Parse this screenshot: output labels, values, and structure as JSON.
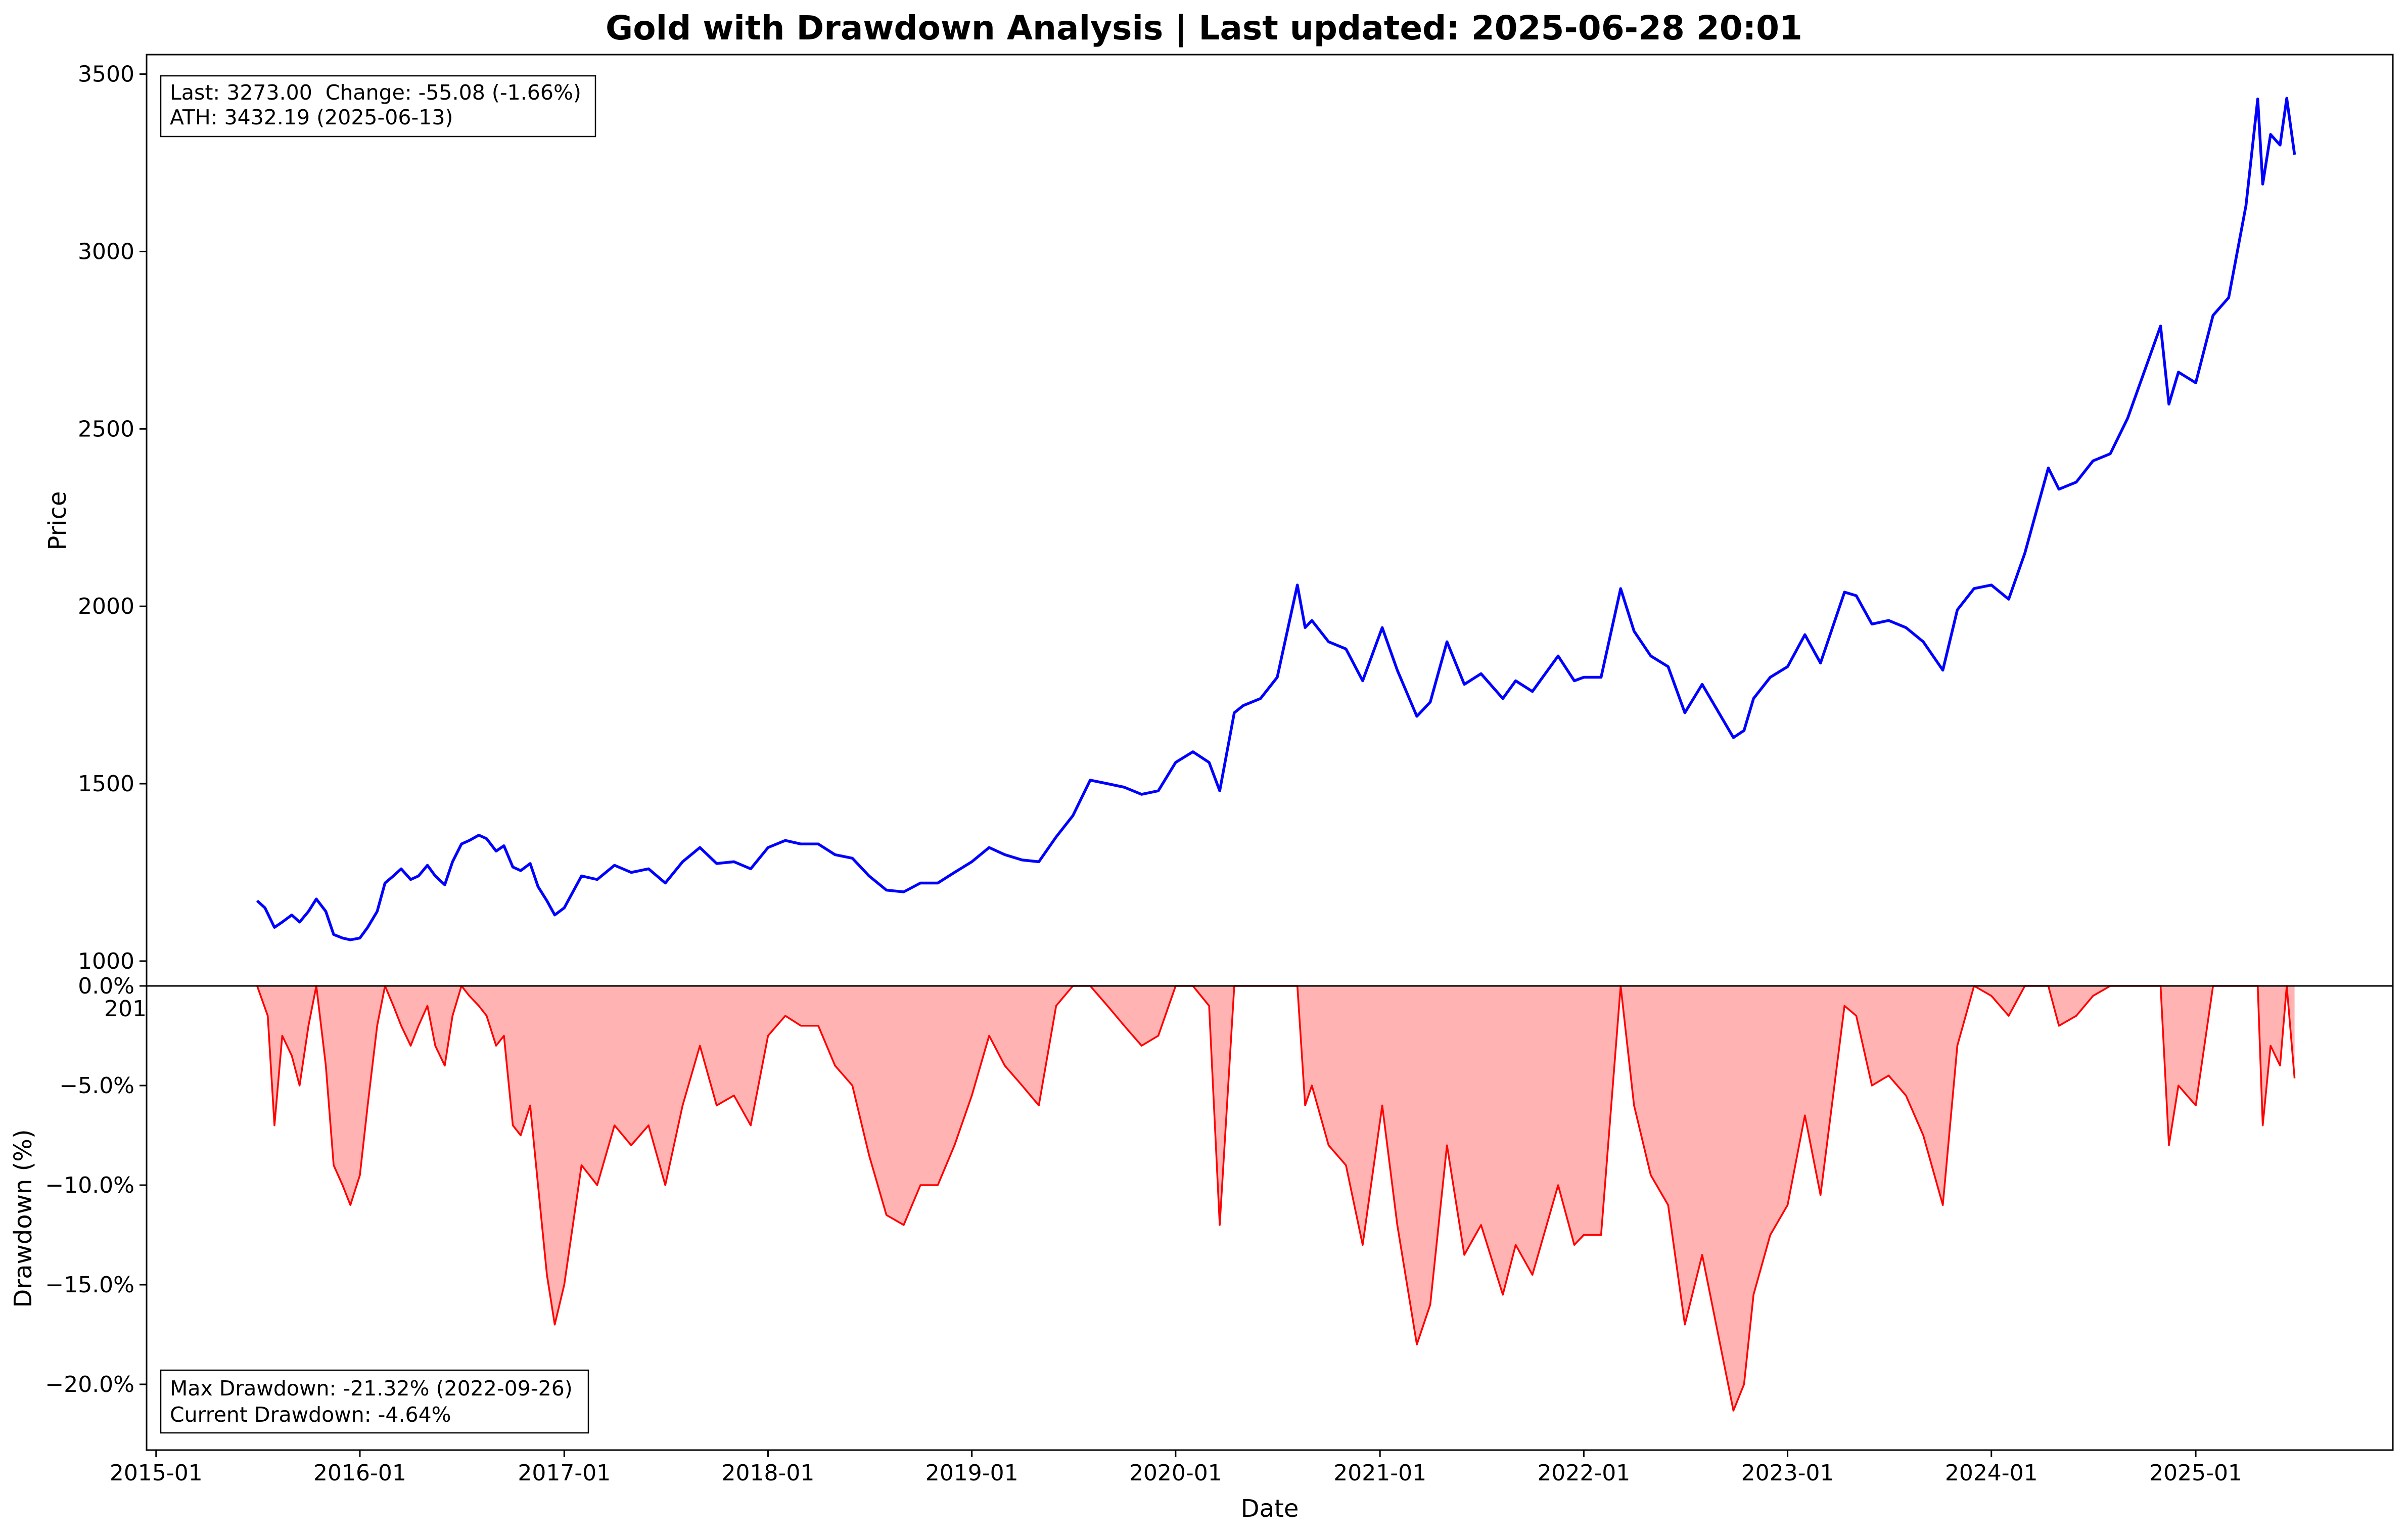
{
  "figure": {
    "title": "Gold with Drawdown Analysis | Last updated: 2025-06-28 20:01"
  },
  "price_panel": {
    "ylabel": "Price",
    "info_line1": "Last: 3273.00  Change: -55.08 (-1.66%)",
    "info_line2": "ATH: 3432.19 (2025-06-13)",
    "line_color": "#0000ff"
  },
  "drawdown_panel": {
    "ylabel": "Drawdown (%)",
    "xlabel": "Date",
    "info_line1": "Max Drawdown: -21.32% (2022-09-26)",
    "info_line2": "Current Drawdown: -4.64%",
    "line_color": "#ff0000",
    "fill_color": "#ffb3b3",
    "clipped_tick_fragment": "201"
  },
  "chart_data": [
    {
      "type": "line",
      "title": "Gold with Drawdown Analysis | Last updated: 2025-06-28 20:01",
      "xlabel": "",
      "ylabel": "Price",
      "xlim": [
        "2014-12-15",
        "2025-12-20"
      ],
      "ylim": [
        930,
        3555
      ],
      "yticks": [
        1000,
        1500,
        2000,
        2500,
        3000,
        3500
      ],
      "xticks": [
        "2015-01",
        "2016-01",
        "2017-01",
        "2018-01",
        "2019-01",
        "2020-01",
        "2021-01",
        "2022-01",
        "2023-01",
        "2024-01",
        "2025-01"
      ],
      "grid": false,
      "series": [
        {
          "name": "",
          "color": "#0000ff",
          "x": [
            "2015-07-01",
            "2015-07-15",
            "2015-08-01",
            "2015-08-15",
            "2015-09-01",
            "2015-09-15",
            "2015-10-01",
            "2015-10-15",
            "2015-11-01",
            "2015-11-15",
            "2015-12-01",
            "2015-12-15",
            "2016-01-01",
            "2016-01-15",
            "2016-02-01",
            "2016-02-15",
            "2016-03-01",
            "2016-03-15",
            "2016-04-01",
            "2016-04-15",
            "2016-05-01",
            "2016-05-15",
            "2016-06-01",
            "2016-06-15",
            "2016-07-01",
            "2016-07-15",
            "2016-08-01",
            "2016-08-15",
            "2016-09-01",
            "2016-09-15",
            "2016-10-01",
            "2016-10-15",
            "2016-11-01",
            "2016-11-15",
            "2016-12-01",
            "2016-12-15",
            "2017-01-01",
            "2017-02-01",
            "2017-03-01",
            "2017-04-01",
            "2017-05-01",
            "2017-06-01",
            "2017-07-01",
            "2017-08-01",
            "2017-09-01",
            "2017-10-01",
            "2017-11-01",
            "2017-12-01",
            "2018-01-01",
            "2018-02-01",
            "2018-03-01",
            "2018-04-01",
            "2018-05-01",
            "2018-06-01",
            "2018-07-01",
            "2018-08-01",
            "2018-09-01",
            "2018-10-01",
            "2018-11-01",
            "2018-12-01",
            "2019-01-01",
            "2019-02-01",
            "2019-03-01",
            "2019-04-01",
            "2019-05-01",
            "2019-06-01",
            "2019-07-01",
            "2019-08-01",
            "2019-09-01",
            "2019-10-01",
            "2019-11-01",
            "2019-12-01",
            "2020-01-01",
            "2020-02-01",
            "2020-03-01",
            "2020-03-20",
            "2020-04-15",
            "2020-05-01",
            "2020-06-01",
            "2020-07-01",
            "2020-08-06",
            "2020-08-20",
            "2020-09-01",
            "2020-10-01",
            "2020-11-01",
            "2020-12-01",
            "2021-01-05",
            "2021-02-01",
            "2021-03-08",
            "2021-04-01",
            "2021-05-01",
            "2021-06-01",
            "2021-07-01",
            "2021-08-09",
            "2021-09-01",
            "2021-10-01",
            "2021-11-16",
            "2021-12-15",
            "2022-01-01",
            "2022-02-01",
            "2022-03-08",
            "2022-04-01",
            "2022-05-01",
            "2022-06-01",
            "2022-07-01",
            "2022-08-01",
            "2022-09-26",
            "2022-10-15",
            "2022-11-01",
            "2022-12-01",
            "2023-01-01",
            "2023-02-01",
            "2023-03-01",
            "2023-04-13",
            "2023-05-04",
            "2023-06-01",
            "2023-07-01",
            "2023-08-01",
            "2023-09-01",
            "2023-10-06",
            "2023-11-01",
            "2023-12-01",
            "2024-01-01",
            "2024-02-01",
            "2024-03-01",
            "2024-04-12",
            "2024-05-01",
            "2024-06-01",
            "2024-07-01",
            "2024-08-01",
            "2024-09-01",
            "2024-10-30",
            "2024-11-14",
            "2024-12-01",
            "2025-01-01",
            "2025-02-01",
            "2025-03-01",
            "2025-04-01",
            "2025-04-22",
            "2025-05-01",
            "2025-05-15",
            "2025-06-01",
            "2025-06-13",
            "2025-06-27"
          ],
          "y": [
            1170,
            1150,
            1095,
            1110,
            1130,
            1110,
            1140,
            1175,
            1140,
            1075,
            1065,
            1060,
            1065,
            1095,
            1140,
            1220,
            1240,
            1260,
            1230,
            1240,
            1270,
            1240,
            1215,
            1280,
            1330,
            1340,
            1355,
            1345,
            1310,
            1325,
            1265,
            1255,
            1275,
            1210,
            1170,
            1130,
            1150,
            1240,
            1230,
            1270,
            1250,
            1260,
            1220,
            1280,
            1320,
            1275,
            1280,
            1260,
            1320,
            1340,
            1330,
            1330,
            1300,
            1290,
            1240,
            1200,
            1195,
            1220,
            1220,
            1250,
            1280,
            1320,
            1300,
            1285,
            1280,
            1350,
            1410,
            1510,
            1500,
            1490,
            1470,
            1480,
            1560,
            1590,
            1560,
            1480,
            1700,
            1720,
            1740,
            1800,
            2060,
            1940,
            1960,
            1900,
            1880,
            1790,
            1940,
            1820,
            1690,
            1730,
            1900,
            1780,
            1810,
            1740,
            1790,
            1760,
            1860,
            1790,
            1800,
            1800,
            2050,
            1930,
            1860,
            1830,
            1700,
            1780,
            1630,
            1650,
            1740,
            1800,
            1830,
            1920,
            1840,
            2040,
            2030,
            1950,
            1960,
            1940,
            1900,
            1820,
            1990,
            2050,
            2060,
            2020,
            2150,
            2390,
            2330,
            2350,
            2410,
            2430,
            2530,
            2790,
            2570,
            2660,
            2630,
            2820,
            2870,
            3130,
            3430,
            3190,
            3330,
            3300,
            3432,
            3273
          ]
        }
      ]
    },
    {
      "type": "area",
      "xlabel": "Date",
      "ylabel": "Drawdown (%)",
      "xlim": [
        "2014-12-15",
        "2025-12-20"
      ],
      "ylim": [
        -23.3,
        0
      ],
      "yticks": [
        0,
        -5,
        -10,
        -15,
        -20
      ],
      "ytick_labels": [
        "0.0%",
        "−5.0%",
        "−10.0%",
        "−15.0%",
        "−20.0%"
      ],
      "xticks": [
        "2015-01",
        "2016-01",
        "2017-01",
        "2018-01",
        "2019-01",
        "2020-01",
        "2021-01",
        "2022-01",
        "2023-01",
        "2024-01",
        "2025-01"
      ],
      "grid": false,
      "series": [
        {
          "name": "",
          "color": "#ff0000",
          "fill": "#ffb3b3",
          "x": [
            "2015-07-01",
            "2015-07-20",
            "2015-08-01",
            "2015-08-15",
            "2015-09-01",
            "2015-09-15",
            "2015-10-01",
            "2015-10-15",
            "2015-11-01",
            "2015-11-15",
            "2015-12-01",
            "2015-12-15",
            "2016-01-01",
            "2016-01-15",
            "2016-02-01",
            "2016-02-15",
            "2016-03-01",
            "2016-03-15",
            "2016-04-01",
            "2016-04-15",
            "2016-05-01",
            "2016-05-15",
            "2016-06-01",
            "2016-06-15",
            "2016-07-01",
            "2016-07-15",
            "2016-08-01",
            "2016-08-15",
            "2016-09-01",
            "2016-09-15",
            "2016-10-01",
            "2016-10-15",
            "2016-11-01",
            "2016-11-15",
            "2016-12-01",
            "2016-12-15",
            "2017-01-01",
            "2017-02-01",
            "2017-03-01",
            "2017-04-01",
            "2017-05-01",
            "2017-06-01",
            "2017-07-01",
            "2017-08-01",
            "2017-09-01",
            "2017-10-01",
            "2017-11-01",
            "2017-12-01",
            "2018-01-01",
            "2018-02-01",
            "2018-03-01",
            "2018-04-01",
            "2018-05-01",
            "2018-06-01",
            "2018-07-01",
            "2018-08-01",
            "2018-09-01",
            "2018-10-01",
            "2018-11-01",
            "2018-12-01",
            "2019-01-01",
            "2019-02-01",
            "2019-03-01",
            "2019-04-01",
            "2019-05-01",
            "2019-06-01",
            "2019-07-01",
            "2019-08-01",
            "2019-09-01",
            "2019-10-01",
            "2019-11-01",
            "2019-12-01",
            "2020-01-01",
            "2020-02-01",
            "2020-03-01",
            "2020-03-20",
            "2020-04-15",
            "2020-05-01",
            "2020-06-01",
            "2020-07-01",
            "2020-08-06",
            "2020-08-20",
            "2020-09-01",
            "2020-10-01",
            "2020-11-01",
            "2020-12-01",
            "2021-01-05",
            "2021-02-01",
            "2021-03-08",
            "2021-04-01",
            "2021-05-01",
            "2021-06-01",
            "2021-07-01",
            "2021-08-09",
            "2021-09-01",
            "2021-10-01",
            "2021-11-16",
            "2021-12-15",
            "2022-01-01",
            "2022-02-01",
            "2022-03-08",
            "2022-04-01",
            "2022-05-01",
            "2022-06-01",
            "2022-07-01",
            "2022-08-01",
            "2022-09-26",
            "2022-10-15",
            "2022-11-01",
            "2022-12-01",
            "2023-01-01",
            "2023-02-01",
            "2023-03-01",
            "2023-04-13",
            "2023-05-04",
            "2023-06-01",
            "2023-07-01",
            "2023-08-01",
            "2023-09-01",
            "2023-10-06",
            "2023-11-01",
            "2023-12-01",
            "2024-01-01",
            "2024-02-01",
            "2024-03-01",
            "2024-04-12",
            "2024-05-01",
            "2024-06-01",
            "2024-07-01",
            "2024-08-01",
            "2024-09-01",
            "2024-10-30",
            "2024-11-14",
            "2024-12-01",
            "2025-01-01",
            "2025-02-01",
            "2025-03-01",
            "2025-04-01",
            "2025-04-22",
            "2025-05-01",
            "2025-05-15",
            "2025-06-01",
            "2025-06-13",
            "2025-06-27"
          ],
          "y": [
            0,
            -1.5,
            -7.0,
            -2.5,
            -3.5,
            -5.0,
            -2.0,
            0,
            -4.0,
            -9.0,
            -10.0,
            -11.0,
            -9.5,
            -6.0,
            -2.0,
            0,
            -1.0,
            -2.0,
            -3.0,
            -2.0,
            -1.0,
            -3.0,
            -4.0,
            -1.5,
            0,
            -0.5,
            -1.0,
            -1.5,
            -3.0,
            -2.5,
            -7.0,
            -7.5,
            -6.0,
            -10.0,
            -14.5,
            -17.0,
            -15.0,
            -9.0,
            -10.0,
            -7.0,
            -8.0,
            -7.0,
            -10.0,
            -6.0,
            -3.0,
            -6.0,
            -5.5,
            -7.0,
            -2.5,
            -1.5,
            -2.0,
            -2.0,
            -4.0,
            -5.0,
            -8.5,
            -11.5,
            -12.0,
            -10.0,
            -10.0,
            -8.0,
            -5.5,
            -2.5,
            -4.0,
            -5.0,
            -6.0,
            -1.0,
            0,
            0,
            -1.0,
            -2.0,
            -3.0,
            -2.5,
            0,
            0,
            -1.0,
            -12.0,
            0,
            0,
            0,
            0,
            0,
            -6.0,
            -5.0,
            -8.0,
            -9.0,
            -13.0,
            -6.0,
            -12.0,
            -18.0,
            -16.0,
            -8.0,
            -13.5,
            -12.0,
            -15.5,
            -13.0,
            -14.5,
            -10.0,
            -13.0,
            -12.5,
            -12.5,
            0,
            -6.0,
            -9.5,
            -11.0,
            -17.0,
            -13.5,
            -21.32,
            -20.0,
            -15.5,
            -12.5,
            -11.0,
            -6.5,
            -10.5,
            -1.0,
            -1.5,
            -5.0,
            -4.5,
            -5.5,
            -7.5,
            -11.0,
            -3.0,
            0,
            -0.5,
            -1.5,
            0,
            0,
            -2.0,
            -1.5,
            -0.5,
            0,
            0,
            0,
            -8.0,
            -5.0,
            -6.0,
            0,
            0,
            0,
            0,
            -7.0,
            -3.0,
            -4.0,
            0,
            -4.64
          ]
        }
      ]
    }
  ]
}
